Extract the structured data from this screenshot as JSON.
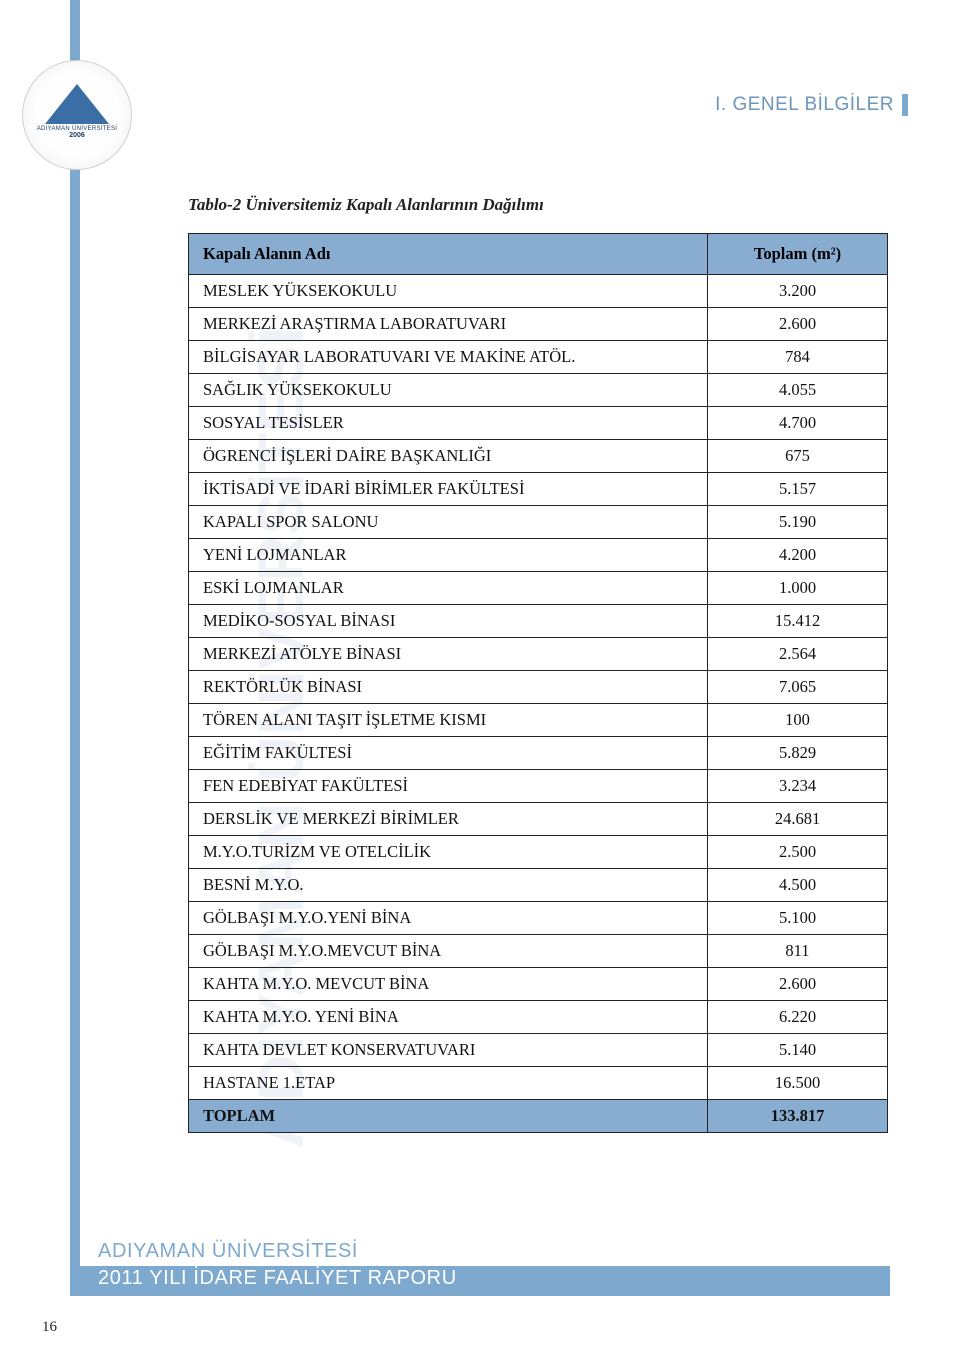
{
  "header": {
    "section": "I. GENEL BİLGİLER"
  },
  "logo": {
    "name": "ADIYAMAN ÜNİVERSİTESİ",
    "year": "2006"
  },
  "watermark": "ADIYAMAN ÜNİVERSİTESİ",
  "table": {
    "caption": "Tablo-2 Üniversitemiz Kapalı Alanlarının Dağılımı",
    "columns": [
      "Kapalı Alanın Adı",
      "Toplam (m²)"
    ],
    "rows": [
      [
        "MESLEK YÜKSEKOKULU",
        "3.200"
      ],
      [
        "MERKEZİ ARAŞTIRMA LABORATUVARI",
        "2.600"
      ],
      [
        "BİLGİSAYAR LABORATUVARI VE MAKİNE ATÖL.",
        "784"
      ],
      [
        "SAĞLIK YÜKSEKOKULU",
        "4.055"
      ],
      [
        "SOSYAL TESİSLER",
        "4.700"
      ],
      [
        "ÖGRENCİ İŞLERİ DAİRE BAŞKANLIĞI",
        "675"
      ],
      [
        "İKTİSADİ VE İDARİ BİRİMLER FAKÜLTESİ",
        "5.157"
      ],
      [
        "KAPALI SPOR SALONU",
        "5.190"
      ],
      [
        "YENİ LOJMANLAR",
        "4.200"
      ],
      [
        "ESKİ LOJMANLAR",
        "1.000"
      ],
      [
        "MEDİKO-SOSYAL BİNASI",
        "15.412"
      ],
      [
        "MERKEZİ ATÖLYE BİNASI",
        "2.564"
      ],
      [
        "REKTÖRLÜK BİNASI",
        "7.065"
      ],
      [
        "TÖREN ALANI TAŞIT İŞLETME KISMI",
        "100"
      ],
      [
        "EĞİTİM FAKÜLTESİ",
        "5.829"
      ],
      [
        "FEN EDEBİYAT FAKÜLTESİ",
        "3.234"
      ],
      [
        "DERSLİK VE MERKEZİ BİRİMLER",
        "24.681"
      ],
      [
        "M.Y.O.TURİZM VE OTELCİLİK",
        "2.500"
      ],
      [
        "BESNİ M.Y.O.",
        "4.500"
      ],
      [
        "GÖLBAŞI M.Y.O.YENİ BİNA",
        "5.100"
      ],
      [
        "GÖLBAŞI M.Y.O.MEVCUT BİNA",
        "811"
      ],
      [
        "KAHTA M.Y.O. MEVCUT BİNA",
        "2.600"
      ],
      [
        "KAHTA M.Y.O. YENİ BİNA",
        "6.220"
      ],
      [
        "KAHTA DEVLET KONSERVATUVARI",
        "5.140"
      ],
      [
        "HASTANE 1.ETAP",
        "16.500"
      ]
    ],
    "total": [
      "TOPLAM",
      "133.817"
    ]
  },
  "footer": {
    "line1": "ADIYAMAN ÜNİVERSİTESİ",
    "line2": "2011 YILI İDARE FAALİYET RAPORU"
  },
  "page_number": "16",
  "colors": {
    "accent": "#7da9cf",
    "table_header": "#88add1",
    "text": "#111111",
    "watermark": "#e9eef4",
    "background": "#ffffff"
  }
}
